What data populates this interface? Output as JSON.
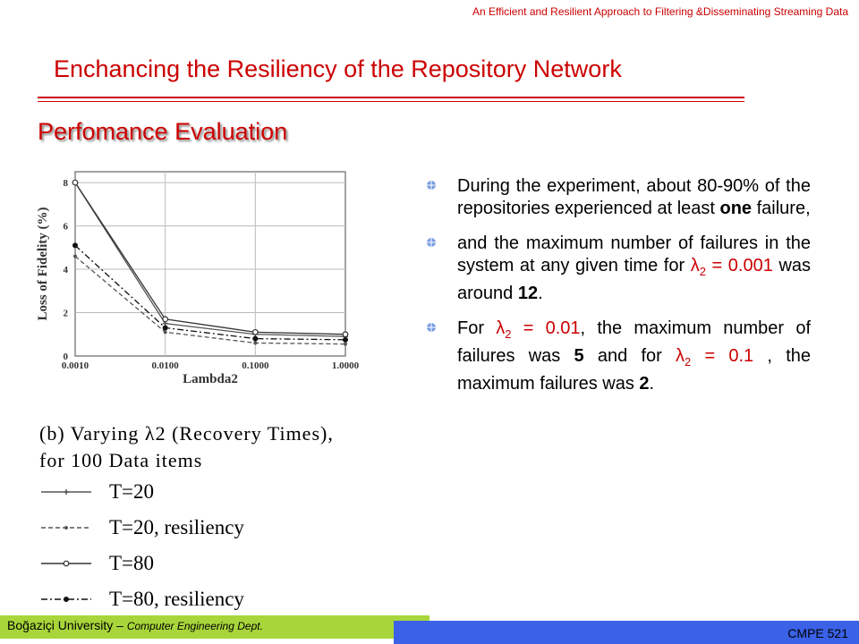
{
  "header": {
    "note": "An Efficient and Resilient Approach to Filtering &Disseminating Streaming Data"
  },
  "title": "Enchancing the Resiliency of the Repository Network",
  "section": "Perfomance Evaluation",
  "chart_data": {
    "type": "line",
    "title": "(b) Varying λ2 (Recovery Times), for 100 Data items",
    "xlabel": "Lambda2",
    "ylabel": "Loss of Fidelity (%)",
    "xscale": "log",
    "x": [
      0.001,
      0.01,
      0.1,
      1.0
    ],
    "x_tick_labels": [
      "0.0010",
      "0.0100",
      "0.1000",
      "1.0000"
    ],
    "y_ticks": [
      0,
      2,
      4,
      6,
      8
    ],
    "ylim": [
      0,
      8.5
    ],
    "grid": true,
    "legend_placement": "below",
    "series": [
      {
        "name": "T=20",
        "values": [
          8.0,
          1.5,
          1.0,
          0.9
        ],
        "color": "#555555",
        "dash": "solid",
        "marker": "plus"
      },
      {
        "name": "T=20, resiliency",
        "values": [
          4.6,
          1.1,
          0.6,
          0.55
        ],
        "color": "#555555",
        "dash": "dashed",
        "marker": "dot"
      },
      {
        "name": "T=80",
        "values": [
          8.0,
          1.7,
          1.1,
          1.0
        ],
        "color": "#333333",
        "dash": "solid",
        "marker": "circle"
      },
      {
        "name": "T=80, resiliency",
        "values": [
          5.1,
          1.3,
          0.8,
          0.75
        ],
        "color": "#111111",
        "dash": "dashdot",
        "marker": "filled"
      }
    ]
  },
  "bullets": [
    {
      "parts": [
        {
          "t": "During the experiment, about 80-90% of the repositories experienced at least "
        },
        {
          "t": "one",
          "b": true
        },
        {
          "t": " failure,"
        }
      ]
    },
    {
      "parts": [
        {
          "t": "and the maximum number of failures in the system at any given time for "
        },
        {
          "t": "λ",
          "c": true
        },
        {
          "t": "2",
          "sub": true,
          "c": true
        },
        {
          "t": " = 0.001",
          "c": true
        },
        {
          "t": " was around "
        },
        {
          "t": "12",
          "b": true
        },
        {
          "t": "."
        }
      ]
    },
    {
      "parts": [
        {
          "t": "For "
        },
        {
          "t": "λ",
          "c": true
        },
        {
          "t": "2",
          "sub": true,
          "c": true
        },
        {
          "t": " = 0.01",
          "c": true
        },
        {
          "t": ", the maximum number of failures was "
        },
        {
          "t": "5",
          "b": true
        },
        {
          "t": " and for "
        },
        {
          "t": "λ",
          "c": true
        },
        {
          "t": "2",
          "sub": true,
          "c": true
        },
        {
          "t": " = 0.1",
          "c": true
        },
        {
          "t": " , the maximum failures was "
        },
        {
          "t": "2",
          "b": true
        },
        {
          "t": "."
        }
      ]
    }
  ],
  "colors": {
    "accent": "#cc0000",
    "highlight": "#cc0000",
    "footer_green": "#a8d63a",
    "footer_blue": "#3a61e6"
  },
  "footer": {
    "university": "Boğaziçi University –",
    "dept": "Computer Engineering Dept.",
    "course": "CMPE 521"
  }
}
